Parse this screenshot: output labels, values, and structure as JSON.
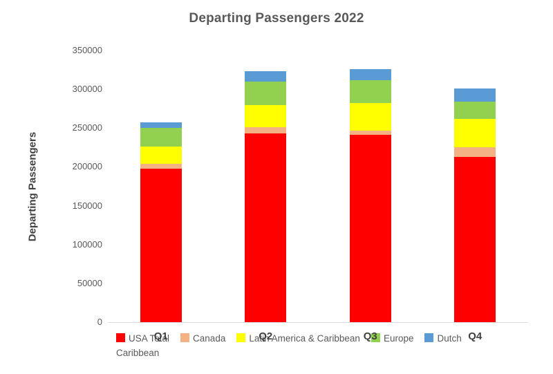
{
  "chart_title": "Departing Passengers 2022",
  "y_axis": {
    "title": "Departing Passengers"
  },
  "colors": {
    "background": "#FFFFFF",
    "title_text": "#595959",
    "tick_text": "#595959",
    "category_text": "#404040",
    "legend_text": "#595959",
    "axis_line": "#D9D9D9"
  },
  "chart_data": {
    "type": "bar",
    "stacked": true,
    "title": "Departing Passengers 2022",
    "xlabel": "",
    "ylabel": "Departing Passengers",
    "categories": [
      "Q1",
      "Q2",
      "Q3",
      "Q4"
    ],
    "series": [
      {
        "name": "USA Total",
        "color": "#FF0000",
        "values": [
          198000,
          243000,
          241000,
          213000
        ]
      },
      {
        "name": "Canada",
        "color": "#F4B183",
        "values": [
          6000,
          8000,
          6000,
          12000
        ]
      },
      {
        "name": "Latin America & Caribbean",
        "color": "#FFFF00",
        "values": [
          22000,
          29000,
          35000,
          37000
        ]
      },
      {
        "name": "Europe",
        "color": "#92D050",
        "values": [
          24000,
          30000,
          30000,
          22000
        ]
      },
      {
        "name": "Dutch Caribbean",
        "color": "#5B9BD5",
        "values": [
          7000,
          13000,
          14000,
          17000
        ]
      }
    ],
    "totals": [
      257000,
      323000,
      326000,
      301000
    ],
    "ylim": [
      0,
      350000
    ],
    "yticks": [
      0,
      50000,
      100000,
      150000,
      200000,
      250000,
      300000,
      350000
    ],
    "grid": false,
    "legend_position": "bottom"
  }
}
